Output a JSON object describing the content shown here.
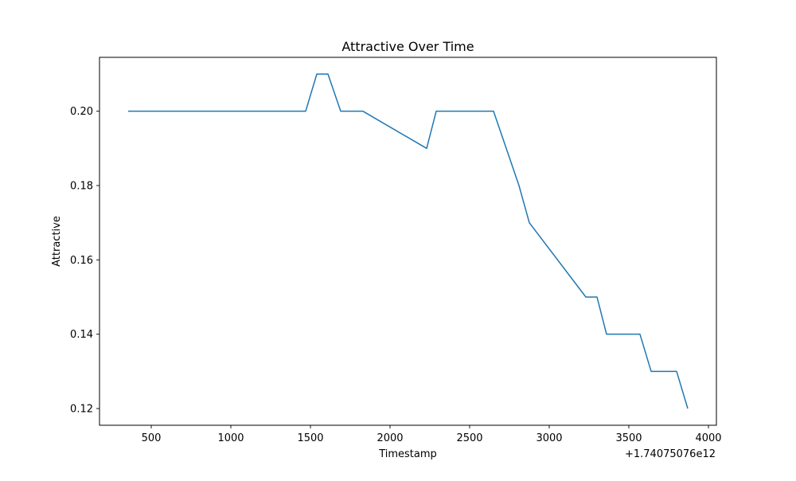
{
  "chart_data": {
    "type": "line",
    "title": "Attractive Over Time",
    "xlabel": "Timestamp",
    "ylabel": "Attractive",
    "x_offset_label": "+1.74075076e12",
    "xlim": [
      175,
      4050
    ],
    "ylim": [
      0.1155,
      0.2145
    ],
    "x_ticks": [
      500,
      1000,
      1500,
      2000,
      2500,
      3000,
      3500,
      4000
    ],
    "x_tick_labels": [
      "500",
      "1000",
      "1500",
      "2000",
      "2500",
      "3000",
      "3500",
      "4000"
    ],
    "y_ticks": [
      0.12,
      0.14,
      0.16,
      0.18,
      0.2
    ],
    "y_tick_labels": [
      "0.12",
      "0.14",
      "0.16",
      "0.18",
      "0.20"
    ],
    "grid": false,
    "series": [
      {
        "color": "#1f77b4",
        "x": [
          355,
          1470,
          1540,
          1610,
          1690,
          1830,
          2230,
          2290,
          2650,
          2810,
          2875,
          3230,
          3300,
          3360,
          3570,
          3640,
          3800,
          3870
        ],
        "y": [
          0.2,
          0.2,
          0.21,
          0.21,
          0.2,
          0.2,
          0.19,
          0.2,
          0.2,
          0.18,
          0.17,
          0.15,
          0.15,
          0.14,
          0.14,
          0.13,
          0.13,
          0.12
        ]
      }
    ]
  }
}
